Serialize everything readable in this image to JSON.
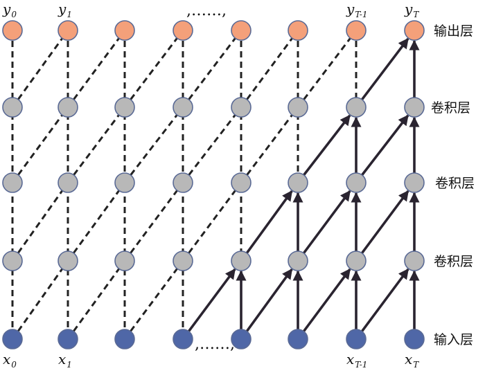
{
  "colors": {
    "output": "#f4a07a",
    "hidden": "#b8b8b8",
    "input": "#4f67a7",
    "edge": "#2a2430"
  },
  "layers": [
    {
      "id": "output",
      "name": "输出层",
      "color_key": "output"
    },
    {
      "id": "conv3",
      "name": "卷积层",
      "color_key": "hidden"
    },
    {
      "id": "conv2",
      "name": "卷积层",
      "color_key": "hidden"
    },
    {
      "id": "conv1",
      "name": "卷积层",
      "color_key": "hidden"
    },
    {
      "id": "input",
      "name": "输入层",
      "color_key": "input"
    }
  ],
  "column_count": 8,
  "top_labels": [
    {
      "col": 0,
      "base": "y",
      "sub": "0"
    },
    {
      "col": 1,
      "base": "y",
      "sub": "1"
    },
    {
      "col": 6,
      "base": "y",
      "sub": "T-1"
    },
    {
      "col": 7,
      "base": "y",
      "sub": "T"
    }
  ],
  "bottom_labels": [
    {
      "col": 0,
      "base": "x",
      "sub": "0"
    },
    {
      "col": 1,
      "base": "x",
      "sub": "1"
    },
    {
      "col": 6,
      "base": "x",
      "sub": "T-1"
    },
    {
      "col": 7,
      "base": "x",
      "sub": "T"
    }
  ],
  "ellipsis_top": ",……,",
  "ellipsis_bottom": ",……,",
  "dashed_vertical": [
    {
      "col": 0,
      "from_layer": 0,
      "to_layer": 4
    },
    {
      "col": 1,
      "from_layer": 0,
      "to_layer": 4
    },
    {
      "col": 2,
      "from_layer": 0,
      "to_layer": 4
    },
    {
      "col": 3,
      "from_layer": 0,
      "to_layer": 4
    },
    {
      "col": 4,
      "from_layer": 0,
      "to_layer": 3
    },
    {
      "col": 5,
      "from_layer": 0,
      "to_layer": 2
    },
    {
      "col": 6,
      "from_layer": 0,
      "to_layer": 1
    }
  ],
  "dashed_diagonal": [
    {
      "from": [
        0,
        4
      ],
      "to": [
        1,
        3
      ]
    },
    {
      "from": [
        1,
        4
      ],
      "to": [
        2,
        3
      ]
    },
    {
      "from": [
        2,
        4
      ],
      "to": [
        3,
        3
      ]
    },
    {
      "from": [
        0,
        3
      ],
      "to": [
        1,
        2
      ]
    },
    {
      "from": [
        1,
        3
      ],
      "to": [
        2,
        2
      ]
    },
    {
      "from": [
        2,
        3
      ],
      "to": [
        3,
        2
      ]
    },
    {
      "from": [
        3,
        3
      ],
      "to": [
        4,
        2
      ]
    },
    {
      "from": [
        0,
        2
      ],
      "to": [
        1,
        1
      ]
    },
    {
      "from": [
        1,
        2
      ],
      "to": [
        2,
        1
      ]
    },
    {
      "from": [
        2,
        2
      ],
      "to": [
        3,
        1
      ]
    },
    {
      "from": [
        3,
        2
      ],
      "to": [
        4,
        1
      ]
    },
    {
      "from": [
        4,
        2
      ],
      "to": [
        5,
        1
      ]
    },
    {
      "from": [
        0,
        1
      ],
      "to": [
        1,
        0
      ]
    },
    {
      "from": [
        1,
        1
      ],
      "to": [
        2,
        0
      ]
    },
    {
      "from": [
        2,
        1
      ],
      "to": [
        3,
        0
      ]
    },
    {
      "from": [
        3,
        1
      ],
      "to": [
        4,
        0
      ]
    },
    {
      "from": [
        4,
        1
      ],
      "to": [
        5,
        0
      ]
    },
    {
      "from": [
        5,
        1
      ],
      "to": [
        6,
        0
      ]
    }
  ],
  "solid_arrows": [
    {
      "from": [
        3,
        4
      ],
      "to": [
        4,
        3
      ]
    },
    {
      "from": [
        4,
        4
      ],
      "to": [
        4,
        3
      ]
    },
    {
      "from": [
        4,
        4
      ],
      "to": [
        5,
        3
      ]
    },
    {
      "from": [
        5,
        4
      ],
      "to": [
        5,
        3
      ]
    },
    {
      "from": [
        5,
        4
      ],
      "to": [
        6,
        3
      ]
    },
    {
      "from": [
        6,
        4
      ],
      "to": [
        6,
        3
      ]
    },
    {
      "from": [
        6,
        4
      ],
      "to": [
        7,
        3
      ]
    },
    {
      "from": [
        7,
        4
      ],
      "to": [
        7,
        3
      ]
    },
    {
      "from": [
        4,
        3
      ],
      "to": [
        5,
        2
      ]
    },
    {
      "from": [
        5,
        3
      ],
      "to": [
        5,
        2
      ]
    },
    {
      "from": [
        5,
        3
      ],
      "to": [
        6,
        2
      ]
    },
    {
      "from": [
        6,
        3
      ],
      "to": [
        6,
        2
      ]
    },
    {
      "from": [
        6,
        3
      ],
      "to": [
        7,
        2
      ]
    },
    {
      "from": [
        7,
        3
      ],
      "to": [
        7,
        2
      ]
    },
    {
      "from": [
        5,
        2
      ],
      "to": [
        6,
        1
      ]
    },
    {
      "from": [
        6,
        2
      ],
      "to": [
        6,
        1
      ]
    },
    {
      "from": [
        6,
        2
      ],
      "to": [
        7,
        1
      ]
    },
    {
      "from": [
        7,
        2
      ],
      "to": [
        7,
        1
      ]
    },
    {
      "from": [
        6,
        1
      ],
      "to": [
        7,
        0
      ]
    },
    {
      "from": [
        7,
        1
      ],
      "to": [
        7,
        0
      ]
    }
  ]
}
